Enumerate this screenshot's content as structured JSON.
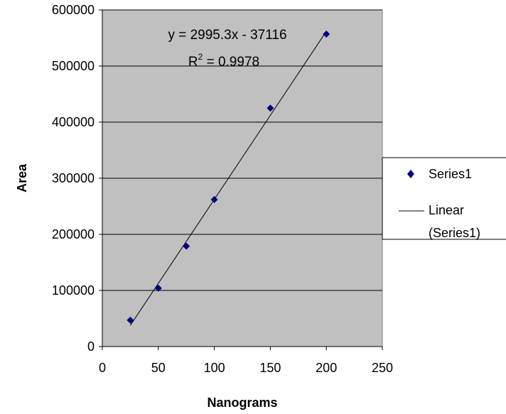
{
  "chart_data": {
    "type": "scatter",
    "xlabel": "Nanograms",
    "ylabel": "Area",
    "xlim": [
      0,
      250
    ],
    "ylim": [
      0,
      600000
    ],
    "xticks": [
      "0",
      "50",
      "100",
      "150",
      "200",
      "250"
    ],
    "yticks": [
      "0",
      "100000",
      "200000",
      "300000",
      "400000",
      "500000",
      "600000"
    ],
    "grid": "horizontal",
    "plot_background": "#c0c0c0",
    "series": [
      {
        "name": "Series1",
        "color": "#000080",
        "marker": "diamond",
        "x": [
          25,
          50,
          75,
          100,
          150,
          200
        ],
        "y": [
          47000,
          104000,
          179000,
          262000,
          425000,
          557000
        ]
      }
    ],
    "trendline": {
      "name": "Linear (Series1)",
      "slope": 2995.3,
      "intercept": -37116,
      "color": "#000000"
    },
    "annotation": {
      "equation": "y = 2995.3x - 37116",
      "r_squared_prefix": "R",
      "r_squared_sup": "2",
      "r_squared_value": " = 0.9978"
    },
    "legend": {
      "position": "right",
      "entries": [
        "Series1",
        "Linear",
        "(Series1)"
      ]
    }
  }
}
